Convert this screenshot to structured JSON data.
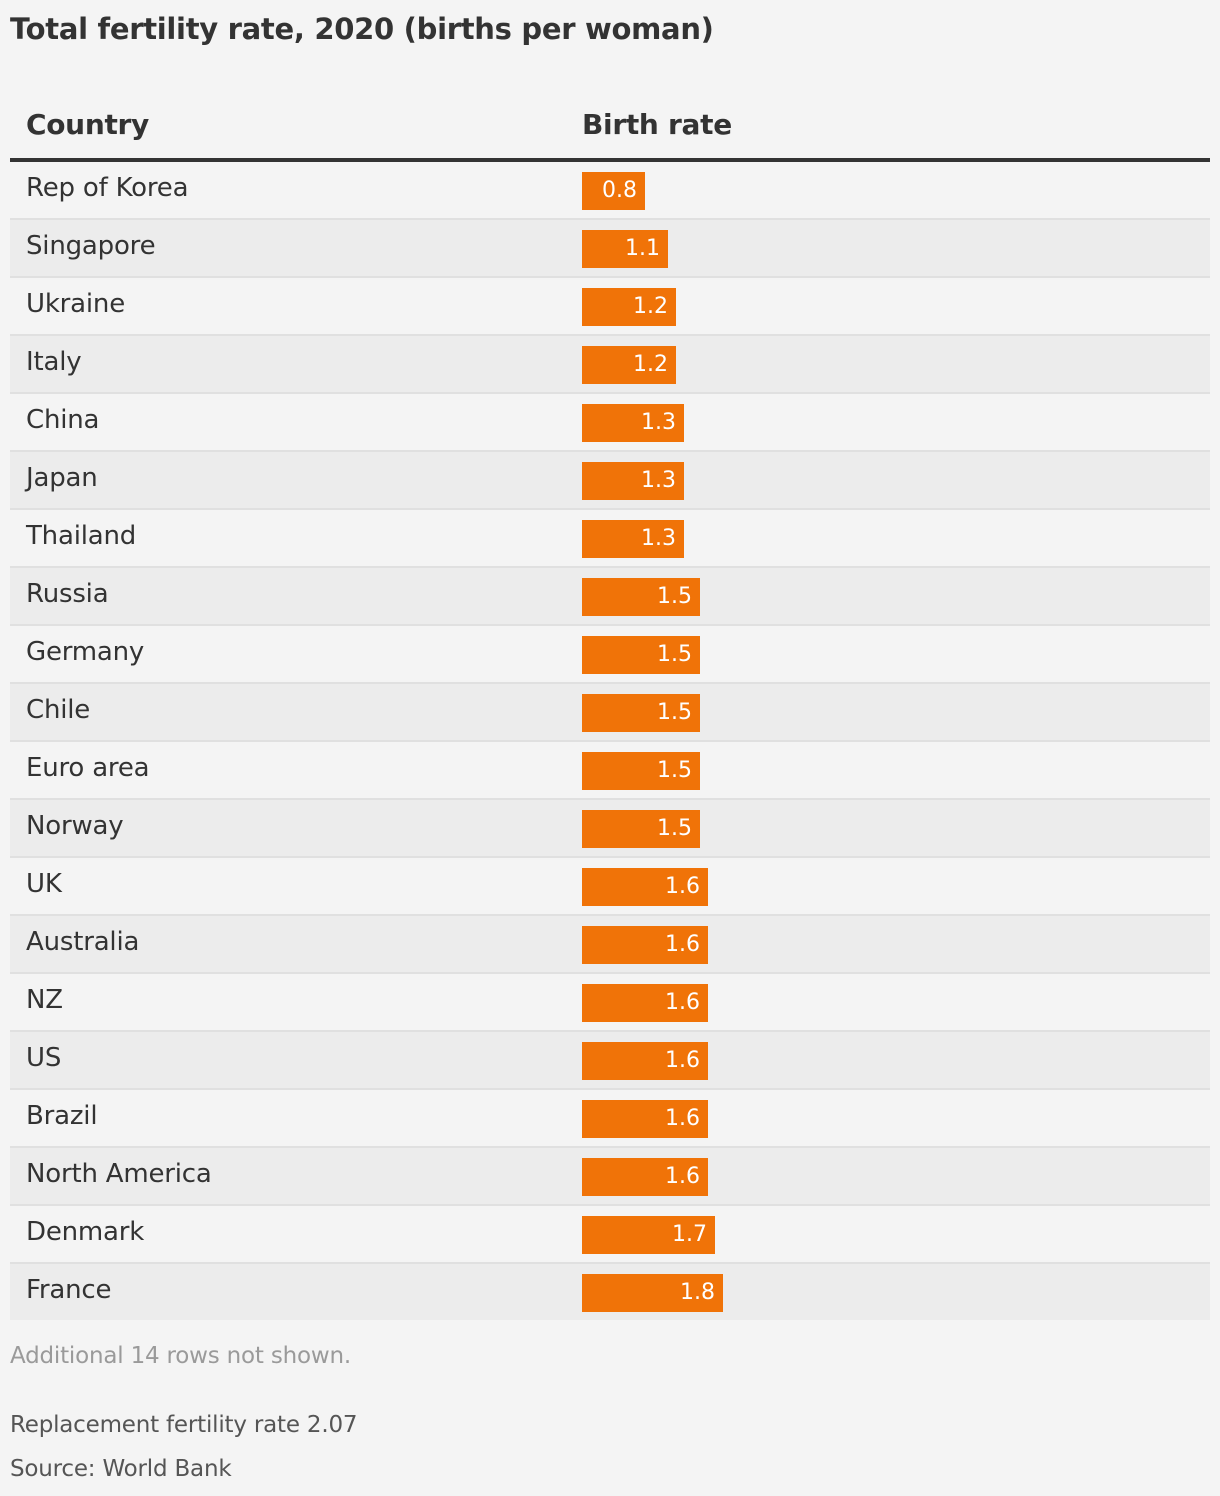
{
  "title": "Total fertility rate, 2020 (births per woman)",
  "table": {
    "col_country": "Country",
    "col_rate": "Birth rate"
  },
  "chart_data": {
    "type": "bar",
    "orientation": "horizontal",
    "title": "Total fertility rate, 2020 (births per woman)",
    "xlabel": "Birth rate",
    "ylabel": "Country",
    "xlim": [
      0,
      8
    ],
    "color": "#f07308",
    "categories": [
      "Rep of Korea",
      "Singapore",
      "Ukraine",
      "Italy",
      "China",
      "Japan",
      "Thailand",
      "Russia",
      "Germany",
      "Chile",
      "Euro area",
      "Norway",
      "UK",
      "Australia",
      "NZ",
      "US",
      "Brazil",
      "North America",
      "Denmark",
      "France"
    ],
    "values": [
      0.8,
      1.1,
      1.2,
      1.2,
      1.3,
      1.3,
      1.3,
      1.5,
      1.5,
      1.5,
      1.5,
      1.5,
      1.6,
      1.6,
      1.6,
      1.6,
      1.6,
      1.6,
      1.7,
      1.8
    ],
    "labels": [
      "0.8",
      "1.1",
      "1.2",
      "1.2",
      "1.3",
      "1.3",
      "1.3",
      "1.5",
      "1.5",
      "1.5",
      "1.5",
      "1.5",
      "1.6",
      "1.6",
      "1.6",
      "1.6",
      "1.6",
      "1.6",
      "1.7",
      "1.8"
    ]
  },
  "footer": {
    "hidden_rows": "Additional 14 rows not shown.",
    "replacement": "Replacement fertility rate 2.07",
    "source": "Source: World Bank"
  }
}
